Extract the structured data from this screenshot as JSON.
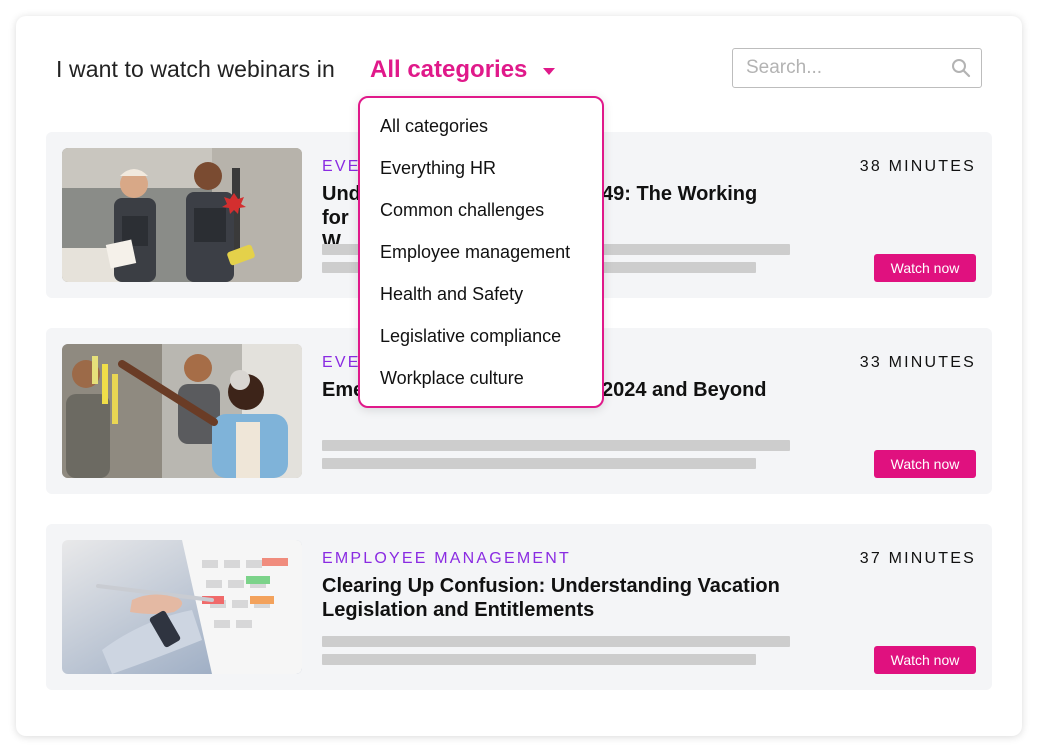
{
  "header": {
    "prompt_text": "I want to watch webinars in",
    "selected_category": "All categories",
    "accent_color": "#e0198a"
  },
  "search": {
    "placeholder": "Search...",
    "value": ""
  },
  "dropdown": {
    "open": true,
    "options": [
      "All categories",
      "Everything HR",
      "Common challenges",
      "Employee management",
      "Health and Safety",
      "Legislative compliance",
      "Workplace culture"
    ]
  },
  "webinars": [
    {
      "category": "EVE",
      "title_line1_start": "Und",
      "title_line1_end": "49: The Working",
      "title_line2_start": "for W",
      "duration": "38 MINUTES",
      "button_label": "Watch now"
    },
    {
      "category": "EVE",
      "title_line1_start": "Eme",
      "title_line1_end": "2024 and Beyond",
      "duration": "33 MINUTES",
      "button_label": "Watch now"
    },
    {
      "category": "EMPLOYEE MANAGEMENT",
      "title_line1": "Clearing Up Confusion: Understanding Vacation",
      "title_line2": "Legislation and Entitlements",
      "duration": "37 MINUTES",
      "button_label": "Watch now"
    }
  ]
}
